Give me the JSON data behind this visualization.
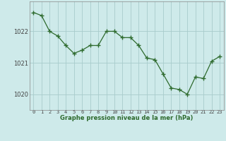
{
  "hours": [
    0,
    1,
    2,
    3,
    4,
    5,
    6,
    7,
    8,
    9,
    10,
    11,
    12,
    13,
    14,
    15,
    16,
    17,
    18,
    19,
    20,
    21,
    22,
    23
  ],
  "pressure": [
    1022.6,
    1022.5,
    1022.0,
    1021.85,
    1021.55,
    1021.3,
    1021.4,
    1021.55,
    1021.55,
    1022.0,
    1022.0,
    1021.8,
    1021.8,
    1021.55,
    1021.15,
    1021.1,
    1020.65,
    1020.2,
    1020.15,
    1020.0,
    1020.55,
    1020.5,
    1021.05,
    1021.2
  ],
  "line_color": "#2d6a2d",
  "marker_color": "#2d6a2d",
  "bg_color": "#ceeaea",
  "grid_color": "#a8cccc",
  "xlabel": "Graphe pression niveau de la mer (hPa)",
  "xlabel_color": "#2d6a2d",
  "ytick_labels": [
    "1020",
    "1021",
    "1022"
  ],
  "ytick_values": [
    1020,
    1021,
    1022
  ],
  "ylim": [
    1019.5,
    1022.95
  ],
  "xlim": [
    -0.5,
    23.5
  ]
}
